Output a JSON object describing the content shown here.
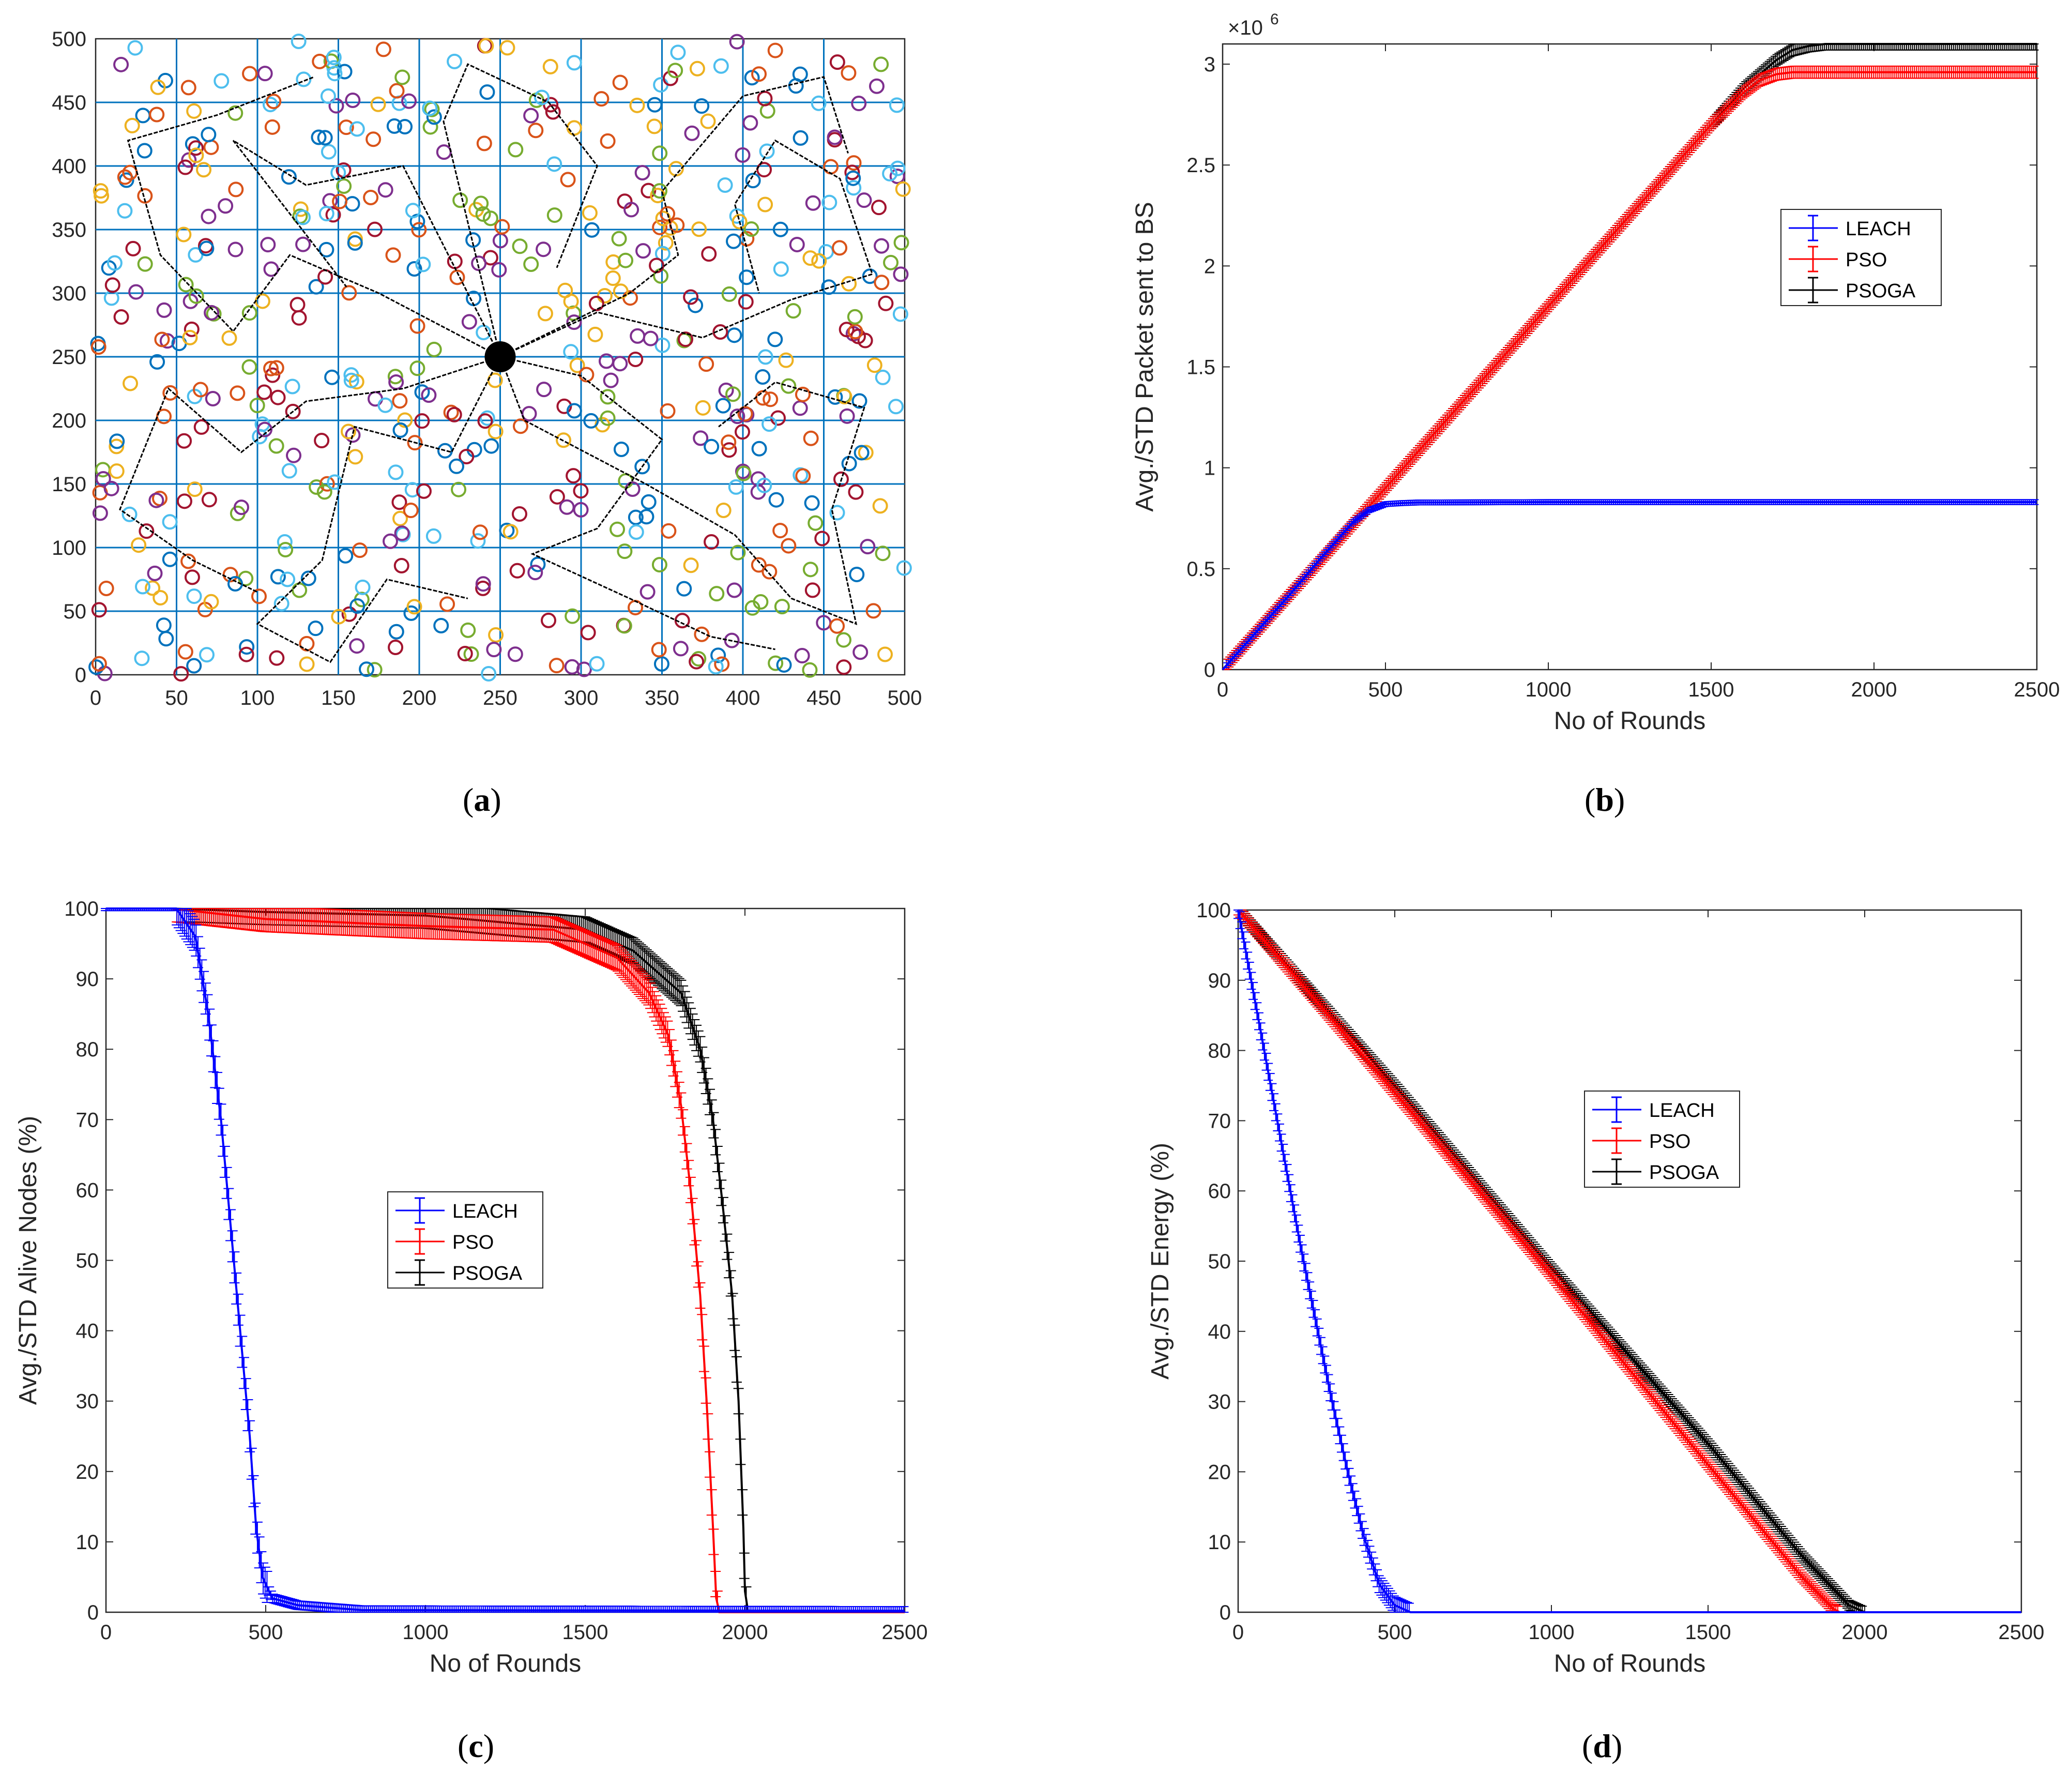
{
  "captions": {
    "a": "a",
    "b": "b",
    "c": "c",
    "d": "d"
  },
  "colors": {
    "LEACH": "#0000ff",
    "PSO": "#ff0000",
    "PSOGA": "#000000",
    "grid": "#0072bd",
    "nodes": [
      "#0072bd",
      "#d95319",
      "#edb120",
      "#7e2f8e",
      "#77ac30",
      "#4dbeee",
      "#a2142f"
    ]
  },
  "chart_data": [
    {
      "id": "a",
      "type": "scatter",
      "title": "",
      "xlabel": "",
      "ylabel": "",
      "xlim": [
        0,
        500
      ],
      "ylim": [
        0,
        500
      ],
      "xticks": [
        0,
        50,
        100,
        150,
        200,
        250,
        300,
        350,
        400,
        450,
        500
      ],
      "yticks": [
        0,
        50,
        100,
        150,
        200,
        250,
        300,
        350,
        400,
        450,
        500
      ],
      "grid": true,
      "node_count": 600,
      "base_station": [
        250,
        250
      ],
      "cluster_paths": [
        [
          [
            250,
            250
          ],
          [
            175,
            300
          ],
          [
            120,
            330
          ],
          [
            85,
            270
          ],
          [
            40,
            330
          ],
          [
            20,
            420
          ],
          [
            75,
            440
          ],
          [
            135,
            470
          ]
        ],
        [
          [
            250,
            250
          ],
          [
            190,
            400
          ],
          [
            130,
            385
          ],
          [
            85,
            420
          ],
          [
            155,
            305
          ]
        ],
        [
          [
            250,
            250
          ],
          [
            215,
            435
          ],
          [
            230,
            480
          ],
          [
            280,
            450
          ],
          [
            310,
            400
          ],
          [
            285,
            320
          ]
        ],
        [
          [
            250,
            250
          ],
          [
            330,
            300
          ],
          [
            360,
            330
          ],
          [
            350,
            380
          ],
          [
            400,
            455
          ],
          [
            450,
            470
          ],
          [
            465,
            410
          ]
        ],
        [
          [
            250,
            250
          ],
          [
            310,
            285
          ],
          [
            375,
            265
          ],
          [
            430,
            295
          ],
          [
            480,
            315
          ],
          [
            460,
            390
          ],
          [
            420,
            420
          ],
          [
            395,
            370
          ],
          [
            410,
            300
          ]
        ],
        [
          [
            250,
            250
          ],
          [
            190,
            225
          ],
          [
            130,
            215
          ],
          [
            90,
            175
          ],
          [
            45,
            225
          ],
          [
            15,
            130
          ],
          [
            60,
            90
          ],
          [
            100,
            65
          ]
        ],
        [
          [
            250,
            250
          ],
          [
            220,
            175
          ],
          [
            160,
            195
          ],
          [
            140,
            90
          ],
          [
            100,
            40
          ],
          [
            145,
            10
          ],
          [
            180,
            75
          ],
          [
            230,
            60
          ]
        ],
        [
          [
            250,
            250
          ],
          [
            300,
            235
          ],
          [
            350,
            185
          ],
          [
            310,
            115
          ],
          [
            270,
            95
          ],
          [
            330,
            60
          ],
          [
            380,
            30
          ],
          [
            420,
            20
          ]
        ],
        [
          [
            250,
            250
          ],
          [
            265,
            200
          ],
          [
            340,
            150
          ],
          [
            395,
            110
          ],
          [
            430,
            60
          ],
          [
            470,
            40
          ],
          [
            455,
            130
          ],
          [
            475,
            210
          ],
          [
            420,
            230
          ],
          [
            385,
            195
          ]
        ]
      ]
    },
    {
      "id": "b",
      "type": "line",
      "title": "",
      "xlabel": "No of Rounds",
      "ylabel": "Avg./STD Packet sent to BS",
      "exponent_label": "×10",
      "exponent_sup": "6",
      "xlim": [
        0,
        2500
      ],
      "ylim": [
        0,
        3.1
      ],
      "xticks": [
        0,
        500,
        1000,
        1500,
        2000,
        2500
      ],
      "yticks": [
        0,
        0.5,
        1,
        1.5,
        2,
        2.5,
        3
      ],
      "legend": [
        "LEACH",
        "PSO",
        "PSOGA"
      ],
      "legend_position": "right",
      "series": [
        {
          "name": "LEACH",
          "x": [
            0,
            100,
            200,
            300,
            400,
            450,
            500,
            550,
            600,
            1000,
            2500
          ],
          "values": [
            0,
            0.18,
            0.36,
            0.55,
            0.73,
            0.79,
            0.82,
            0.825,
            0.828,
            0.83,
            0.83
          ]
        },
        {
          "name": "PSO",
          "x": [
            0,
            500,
            1000,
            1500,
            1600,
            1650,
            1700,
            1750,
            2500
          ],
          "values": [
            0,
            0.9,
            1.8,
            2.7,
            2.86,
            2.92,
            2.95,
            2.96,
            2.96
          ]
        },
        {
          "name": "PSOGA",
          "x": [
            0,
            500,
            1000,
            1500,
            1600,
            1700,
            1750,
            1800,
            1850,
            2500
          ],
          "values": [
            0,
            0.9,
            1.8,
            2.7,
            2.88,
            3.02,
            3.07,
            3.09,
            3.1,
            3.1
          ]
        }
      ]
    },
    {
      "id": "c",
      "type": "line",
      "title": "",
      "xlabel": "No of Rounds",
      "ylabel": "Avg./STD Alive Nodes (%)",
      "xlim": [
        0,
        2500
      ],
      "ylim": [
        0,
        100
      ],
      "xticks": [
        0,
        500,
        1000,
        1500,
        2000,
        2500
      ],
      "yticks": [
        0,
        10,
        20,
        30,
        40,
        50,
        60,
        70,
        80,
        90,
        100
      ],
      "legend": [
        "LEACH",
        "PSO",
        "PSOGA"
      ],
      "legend_position": "center",
      "series": [
        {
          "name": "LEACH",
          "x": [
            0,
            220,
            280,
            320,
            360,
            400,
            430,
            450,
            470,
            490,
            520,
            600,
            800,
            2500
          ],
          "values": [
            100,
            100,
            96,
            85,
            70,
            50,
            35,
            25,
            12,
            5,
            2,
            1,
            0.3,
            0.2
          ]
        },
        {
          "name": "PSO",
          "x": [
            0,
            200,
            500,
            1000,
            1400,
            1600,
            1700,
            1760,
            1800,
            1830,
            1860,
            1880,
            1900,
            1910,
            1920,
            2500
          ],
          "values": [
            100,
            100,
            98.5,
            97.5,
            97,
            93,
            88,
            82,
            72,
            60,
            45,
            30,
            12,
            2,
            0,
            0
          ]
        },
        {
          "name": "PSOGA",
          "x": [
            0,
            200,
            500,
            1000,
            1500,
            1650,
            1800,
            1860,
            1900,
            1930,
            1960,
            1980,
            1995,
            2000,
            2010,
            2500
          ],
          "values": [
            100,
            100,
            99.5,
            99,
            97,
            94,
            88,
            80,
            70,
            58,
            45,
            30,
            12,
            3,
            0,
            0
          ]
        }
      ]
    },
    {
      "id": "d",
      "type": "line",
      "title": "",
      "xlabel": "No of Rounds",
      "ylabel": "Avg./STD Energy (%)",
      "xlim": [
        0,
        2500
      ],
      "ylim": [
        0,
        100
      ],
      "xticks": [
        0,
        500,
        1000,
        1500,
        2000,
        2500
      ],
      "yticks": [
        0,
        10,
        20,
        30,
        40,
        50,
        60,
        70,
        80,
        90,
        100
      ],
      "legend": [
        "LEACH",
        "PSO",
        "PSOGA"
      ],
      "legend_position": "center",
      "series": [
        {
          "name": "LEACH",
          "x": [
            0,
            50,
            100,
            200,
            300,
            350,
            400,
            450,
            500,
            550,
            600,
            2500
          ],
          "values": [
            100,
            88,
            76,
            52,
            30,
            20,
            11,
            4,
            1,
            0,
            0,
            0
          ]
        },
        {
          "name": "PSO",
          "x": [
            0,
            500,
            1000,
            1500,
            1800,
            1900,
            1920,
            2500
          ],
          "values": [
            100,
            74,
            48,
            21,
            5,
            0.5,
            0,
            0
          ]
        },
        {
          "name": "PSOGA",
          "x": [
            0,
            500,
            1000,
            1500,
            1800,
            1950,
            2000,
            2500
          ],
          "values": [
            100,
            75,
            49,
            24,
            8,
            1,
            0,
            0
          ]
        }
      ]
    }
  ]
}
